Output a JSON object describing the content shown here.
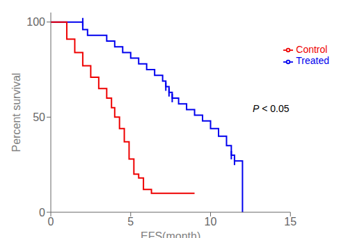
{
  "chart_data": {
    "type": "line",
    "line_style": "step",
    "marker": "|",
    "x_label": "EFS(month)",
    "y_label": "Percent survival",
    "xlim": [
      0,
      15
    ],
    "ylim": [
      0,
      105
    ],
    "xticks": [
      0,
      5,
      10,
      15
    ],
    "yticks": [
      0,
      50,
      100
    ],
    "legend": "upper right",
    "annotation": [
      "P",
      "< 0.05"
    ],
    "series": [
      {
        "name": "Treated",
        "color": "#0000EE",
        "x": [
          0,
          2.0,
          2.0,
          2.3,
          2.3,
          3.5,
          3.5,
          4.0,
          4.0,
          4.5,
          4.5,
          5.0,
          5.0,
          5.5,
          5.5,
          6.0,
          6.0,
          6.5,
          6.5,
          7.0,
          7.0,
          7.2,
          7.2,
          7.4,
          7.4,
          7.6,
          7.6,
          8.0,
          8.0,
          8.5,
          8.5,
          9.0,
          9.0,
          9.5,
          9.5,
          10.0,
          10.0,
          10.5,
          10.5,
          11.0,
          11.0,
          11.3,
          11.3,
          11.5,
          11.5,
          12.0,
          12.0
        ],
        "values": [
          100,
          100,
          96,
          96,
          93,
          93,
          90,
          90,
          87,
          87,
          84,
          84,
          81,
          81,
          78,
          78,
          75,
          75,
          72,
          72,
          69,
          69,
          66,
          66,
          63,
          63,
          60,
          60,
          57,
          57,
          54,
          54,
          51,
          51,
          48,
          48,
          44,
          44,
          40,
          40,
          35,
          35,
          30,
          30,
          27,
          27,
          0
        ],
        "censored_x": [
          2.0,
          7.2,
          7.4,
          7.6,
          11.3,
          11.5
        ],
        "censored_values": [
          100,
          66,
          63,
          60,
          30,
          27
        ]
      },
      {
        "name": "Control",
        "color": "#EE0000",
        "x": [
          0,
          1.0,
          1.0,
          1.5,
          1.5,
          2.0,
          2.0,
          2.5,
          2.5,
          3.0,
          3.0,
          3.5,
          3.5,
          3.8,
          3.8,
          4.0,
          4.0,
          4.3,
          4.3,
          4.6,
          4.6,
          4.9,
          4.9,
          5.2,
          5.2,
          5.5,
          5.5,
          5.8,
          5.8,
          6.3,
          6.3,
          7.0,
          7.0,
          9.0
        ],
        "values": [
          100,
          100,
          91,
          91,
          84,
          84,
          77,
          77,
          71,
          71,
          65,
          65,
          60,
          60,
          55,
          55,
          50,
          50,
          44,
          44,
          37,
          37,
          28,
          28,
          20,
          20,
          18,
          18,
          12,
          12,
          10,
          10,
          10,
          10
        ]
      }
    ]
  }
}
